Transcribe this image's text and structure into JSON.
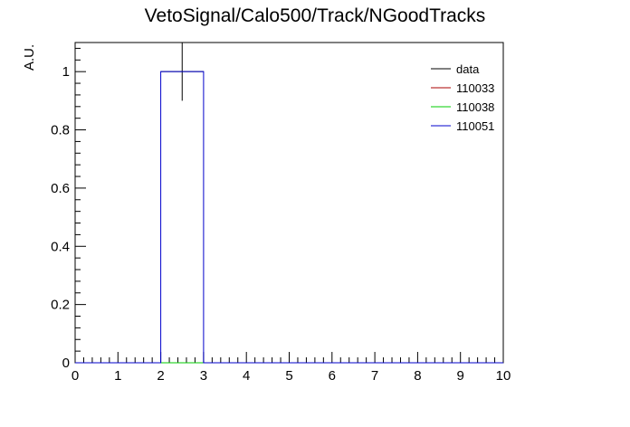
{
  "chart_data": {
    "type": "histogram",
    "title": "VetoSignal/Calo500/Track/NGoodTracks",
    "xlabel": "",
    "ylabel": "A.U.",
    "xlim": [
      0,
      10
    ],
    "ylim": [
      0,
      1.1
    ],
    "xticks": [
      "0",
      "1",
      "2",
      "3",
      "4",
      "5",
      "6",
      "7",
      "8",
      "9",
      "10"
    ],
    "yticks": [
      "0",
      "0.2",
      "0.4",
      "0.6",
      "0.8",
      "1"
    ],
    "bin_edges": [
      0,
      1,
      2,
      3,
      4,
      5,
      6,
      7,
      8,
      9,
      10
    ],
    "series": [
      {
        "name": "data",
        "color": "#000000",
        "style": "errorbar",
        "values": [
          0,
          0,
          1,
          0,
          0,
          0,
          0,
          0,
          0,
          0
        ],
        "errors": [
          0,
          0,
          0.1,
          0,
          0,
          0,
          0,
          0,
          0,
          0
        ]
      },
      {
        "name": "110033",
        "color": "#aa0000",
        "style": "step",
        "values": [
          0,
          0,
          0,
          0,
          0,
          0,
          0,
          0,
          0,
          0
        ]
      },
      {
        "name": "110038",
        "color": "#00cc00",
        "style": "step",
        "values": [
          0,
          0,
          0,
          0,
          0,
          0,
          0,
          0,
          0,
          0
        ]
      },
      {
        "name": "110051",
        "color": "#0000cc",
        "style": "step",
        "values": [
          0,
          0,
          1,
          0,
          0,
          0,
          0,
          0,
          0,
          0
        ]
      }
    ],
    "legend_position": "top-right",
    "grid": false
  }
}
